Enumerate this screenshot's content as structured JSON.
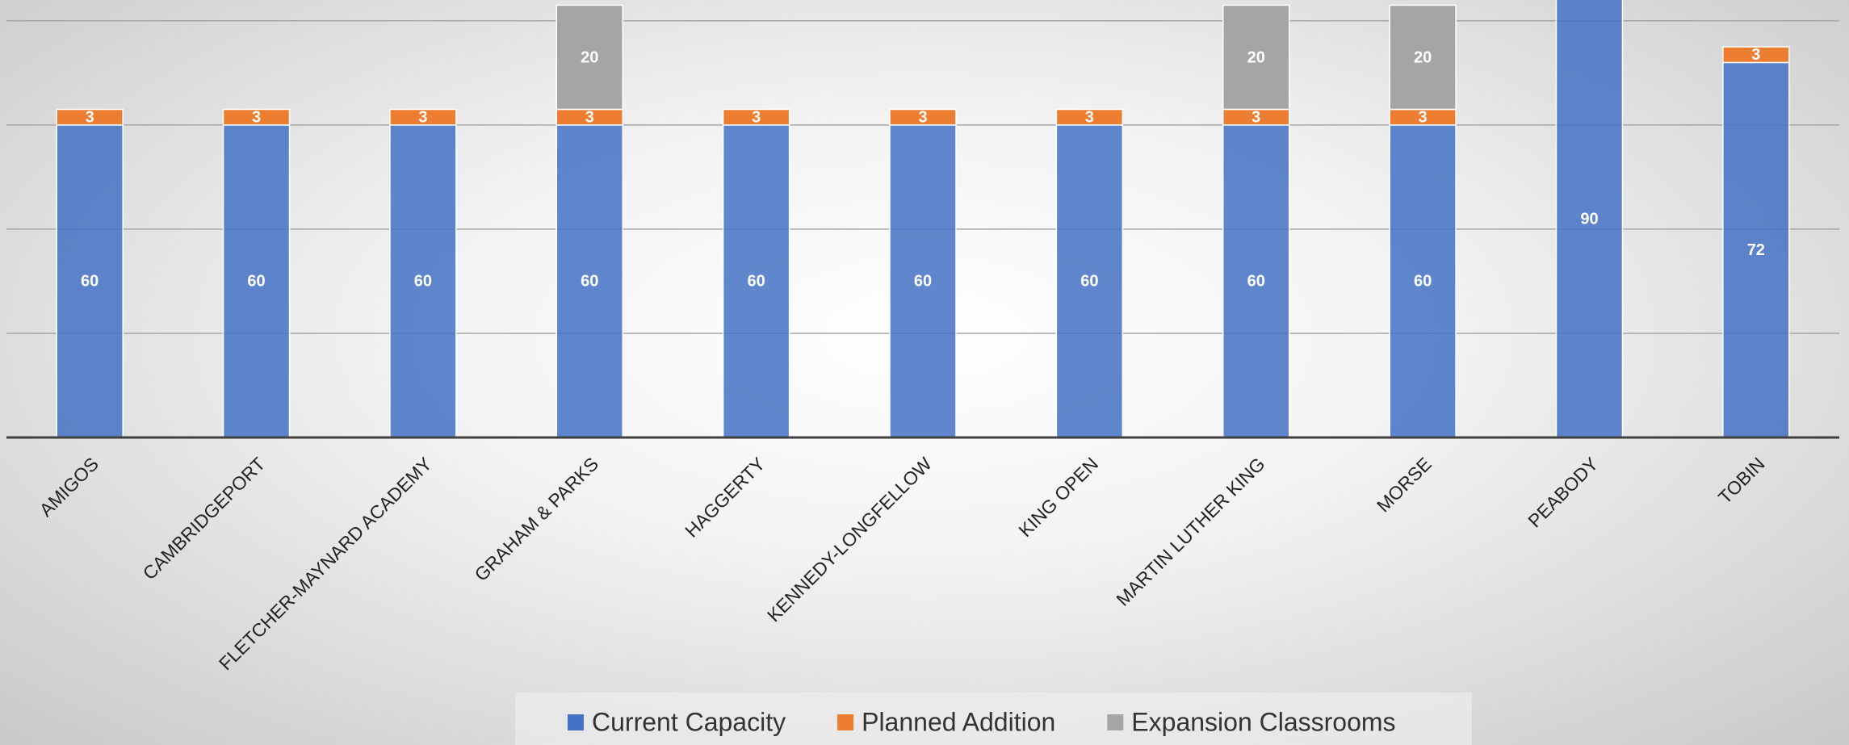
{
  "chart_data": {
    "type": "stacked_bar",
    "categories": [
      "AMIGOS",
      "CAMBRIDGEPORT",
      "FLETCHER-MAYNARD ACADEMY",
      "GRAHAM & PARKS",
      "HAGGERTY",
      "KENNEDY-LONGFELLOW",
      "KING OPEN",
      "MARTIN LUTHER KING",
      "MORSE",
      "PEABODY",
      "TOBIN"
    ],
    "series": [
      {
        "name": "Current Capacity",
        "color": "#4472c4",
        "values": [
          60,
          60,
          60,
          60,
          60,
          60,
          60,
          60,
          60,
          90,
          72
        ]
      },
      {
        "name": "Planned Addition",
        "color": "#ed7d31",
        "values": [
          3,
          3,
          3,
          3,
          3,
          3,
          3,
          3,
          3,
          null,
          3
        ]
      },
      {
        "name": "Expansion Classrooms",
        "color": "#a5a5a5",
        "values": [
          null,
          null,
          null,
          20,
          null,
          null,
          null,
          20,
          20,
          null,
          null
        ]
      }
    ],
    "ylim": [
      0,
      84
    ],
    "yticks": [
      0,
      20,
      40,
      60,
      80
    ],
    "grid": true,
    "legend": "bottom"
  }
}
